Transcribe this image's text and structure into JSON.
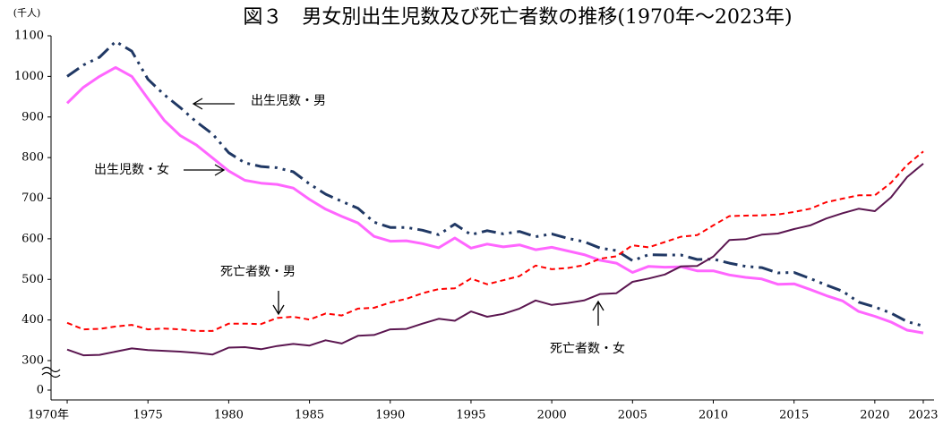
{
  "chart_data": {
    "type": "line",
    "title": "図３　男女別出生児数及び死亡者数の推移(1970年～2023年)",
    "y_unit": "(千人)",
    "x": [
      1970,
      1971,
      1972,
      1973,
      1974,
      1975,
      1976,
      1977,
      1978,
      1979,
      1980,
      1981,
      1982,
      1983,
      1984,
      1985,
      1986,
      1987,
      1988,
      1989,
      1990,
      1991,
      1992,
      1993,
      1994,
      1995,
      1996,
      1997,
      1998,
      1999,
      2000,
      2001,
      2002,
      2003,
      2004,
      2005,
      2006,
      2007,
      2008,
      2009,
      2010,
      2011,
      2012,
      2013,
      2014,
      2015,
      2016,
      2017,
      2018,
      2019,
      2020,
      2021,
      2022,
      2023
    ],
    "xlim": [
      1969,
      2024
    ],
    "xticks": [
      {
        "value": 1970,
        "label": "1970年"
      },
      1975,
      1980,
      1985,
      1990,
      1995,
      2000,
      2005,
      2010,
      2015,
      2020,
      2023
    ],
    "ylim": [
      0,
      1100
    ],
    "yticks": [
      0,
      300,
      400,
      500,
      600,
      700,
      800,
      900,
      1000,
      1100
    ],
    "y_axis_break": [
      0,
      300
    ],
    "series": [
      {
        "name": "出生児数・男",
        "color": "#203864",
        "line_style": "dash-dot",
        "values": [
          1000,
          1028,
          1047,
          1086,
          1062,
          993,
          955,
          923,
          888,
          858,
          812,
          787,
          778,
          775,
          765,
          735,
          710,
          692,
          675,
          641,
          628,
          628,
          621,
          610,
          636,
          610,
          620,
          612,
          618,
          605,
          612,
          601,
          593,
          577,
          571,
          546,
          561,
          560,
          560,
          549,
          550,
          540,
          532,
          529,
          516,
          517,
          502,
          486,
          471,
          444,
          432,
          417,
          396,
          385
        ]
      },
      {
        "name": "出生児数・女",
        "color": "#ff66ff",
        "line_style": "solid",
        "values": [
          934,
          973,
          1000,
          1022,
          1000,
          945,
          892,
          854,
          831,
          799,
          767,
          744,
          737,
          734,
          725,
          697,
          673,
          655,
          639,
          606,
          594,
          595,
          588,
          578,
          602,
          577,
          587,
          580,
          585,
          573,
          579,
          570,
          561,
          547,
          540,
          517,
          532,
          530,
          531,
          521,
          521,
          511,
          505,
          501,
          488,
          489,
          475,
          460,
          447,
          421,
          409,
          395,
          375,
          368
        ]
      },
      {
        "name": "死亡者数・男",
        "color": "#ff0000",
        "line_style": "dash",
        "values": [
          393,
          377,
          378,
          384,
          388,
          377,
          379,
          377,
          373,
          373,
          391,
          391,
          390,
          405,
          408,
          401,
          416,
          411,
          428,
          430,
          443,
          452,
          466,
          476,
          478,
          502,
          488,
          498,
          508,
          534,
          525,
          528,
          535,
          551,
          557,
          584,
          579,
          592,
          605,
          609,
          633,
          656,
          657,
          658,
          660,
          666,
          674,
          690,
          699,
          707,
          707,
          738,
          782,
          815
        ]
      },
      {
        "name": "死亡者数・女",
        "color": "#5b1650",
        "line_style": "solid",
        "values": [
          327,
          313,
          314,
          322,
          330,
          326,
          324,
          322,
          319,
          315,
          332,
          333,
          328,
          336,
          341,
          337,
          350,
          342,
          361,
          363,
          377,
          378,
          391,
          403,
          398,
          421,
          408,
          415,
          428,
          448,
          437,
          442,
          448,
          464,
          466,
          494,
          502,
          512,
          532,
          533,
          556,
          597,
          599,
          610,
          613,
          624,
          633,
          650,
          663,
          674,
          668,
          702,
          752,
          785
        ]
      }
    ]
  }
}
